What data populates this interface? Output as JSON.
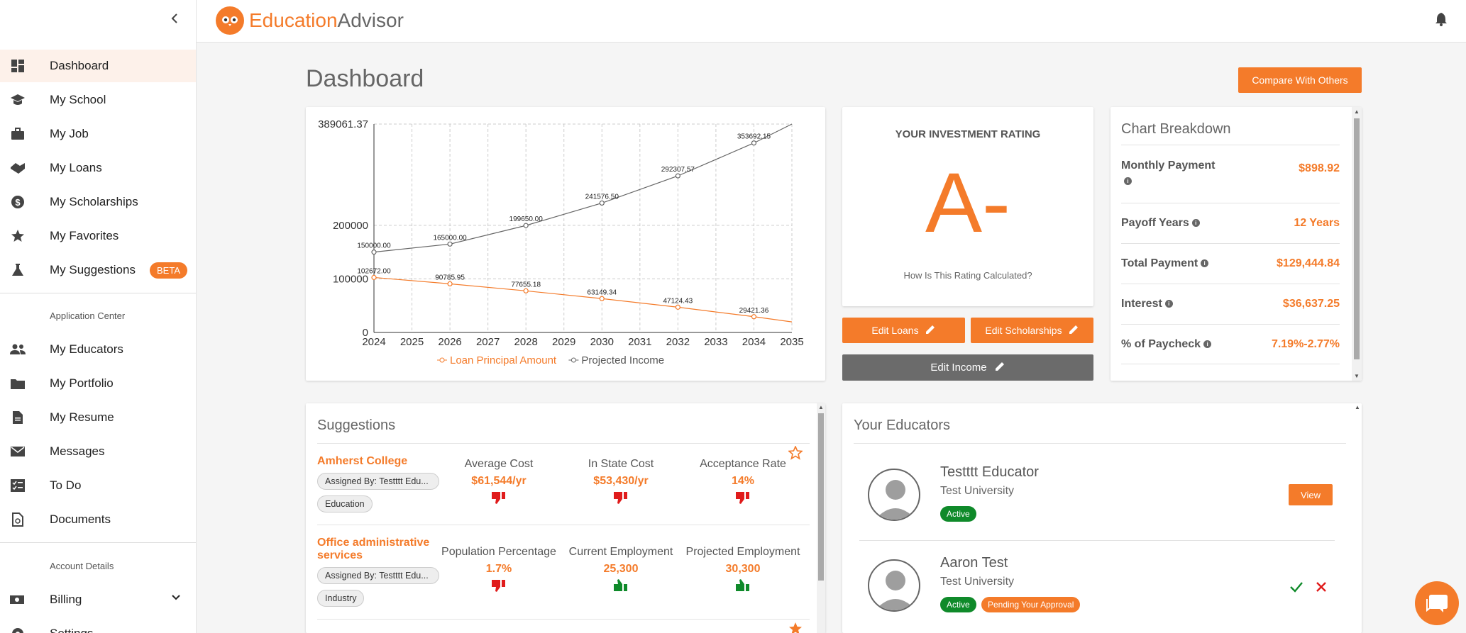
{
  "app": {
    "logo_part1": "Education",
    "logo_part2": "Advisor"
  },
  "sidebar": {
    "items": [
      {
        "label": "Dashboard",
        "icon": "dashboard-icon"
      },
      {
        "label": "My School",
        "icon": "school-icon"
      },
      {
        "label": "My Job",
        "icon": "briefcase-icon"
      },
      {
        "label": "My Loans",
        "icon": "handshake-icon"
      },
      {
        "label": "My Scholarships",
        "icon": "dollar-circle-icon"
      },
      {
        "label": "My Favorites",
        "icon": "star-icon"
      },
      {
        "label": "My Suggestions",
        "icon": "flask-icon",
        "badge": "BETA"
      }
    ],
    "application_center_title": "Application Center",
    "app_items": [
      {
        "label": "My Educators",
        "icon": "people-icon"
      },
      {
        "label": "My Portfolio",
        "icon": "folder-icon"
      },
      {
        "label": "My Resume",
        "icon": "document-icon"
      },
      {
        "label": "Messages",
        "icon": "mail-icon"
      },
      {
        "label": "To Do",
        "icon": "checklist-icon"
      },
      {
        "label": "Documents",
        "icon": "file-clip-icon"
      }
    ],
    "account_details_title": "Account Details",
    "account_items": [
      {
        "label": "Billing",
        "icon": "billing-icon"
      },
      {
        "label": "Settings",
        "icon": "gear-icon"
      }
    ]
  },
  "page": {
    "title": "Dashboard",
    "compare_label": "Compare With Others"
  },
  "chart_data": {
    "type": "line",
    "x": [
      2024,
      2025,
      2026,
      2027,
      2028,
      2029,
      2030,
      2031,
      2032,
      2033,
      2034,
      2035
    ],
    "x_ticks": [
      "2024",
      "2025",
      "2026",
      "2027",
      "2028",
      "2029",
      "2030",
      "2031",
      "2032",
      "2033",
      "2034",
      "2035"
    ],
    "y_ticks": [
      "0",
      "100000",
      "200000",
      "389061.37"
    ],
    "ylim": [
      0,
      389061.37
    ],
    "series": [
      {
        "name": "Loan Principal Amount",
        "color": "#f47b2a",
        "points": [
          [
            2024,
            102672.0
          ],
          [
            2026,
            90785.95
          ],
          [
            2028,
            77655.18
          ],
          [
            2030,
            63149.34
          ],
          [
            2032,
            47124.43
          ],
          [
            2034,
            29421.36
          ],
          [
            2035,
            19700
          ]
        ],
        "labels": [
          "102672.00",
          "90785.95",
          "77655.18",
          "63149.34",
          "47124.43",
          "29421.36",
          ""
        ]
      },
      {
        "name": "Projected Income",
        "color": "#666666",
        "points": [
          [
            2024,
            150000.0
          ],
          [
            2026,
            165000.0
          ],
          [
            2028,
            199650.0
          ],
          [
            2030,
            241576.5
          ],
          [
            2032,
            292307.57
          ],
          [
            2034,
            353692.15
          ],
          [
            2035,
            389061.37
          ]
        ],
        "labels": [
          "150000.00",
          "165000.00",
          "199650.00",
          "241576.50",
          "292307.57",
          "353692.15",
          ""
        ]
      }
    ],
    "grid": true,
    "legend_position": "bottom"
  },
  "rating": {
    "title": "YOUR INVESTMENT RATING",
    "grade": "A-",
    "link": "How Is This Rating Calculated?"
  },
  "buttons": {
    "edit_loans": "Edit Loans",
    "edit_scholarships": "Edit Scholarships",
    "edit_income": "Edit Income"
  },
  "breakdown": {
    "title": "Chart Breakdown",
    "rows": [
      {
        "label": "Monthly Payment",
        "value": "$898.92"
      },
      {
        "label": "Payoff Years",
        "value": "12 Years"
      },
      {
        "label": "Total Payment",
        "value": "$129,444.84"
      },
      {
        "label": "Interest",
        "value": "$36,637.25"
      },
      {
        "label": "% of Paycheck",
        "value": "7.19%-2.77%"
      }
    ]
  },
  "suggestions": {
    "title": "Suggestions",
    "items": [
      {
        "name": "Amherst College",
        "assigned": "Assigned By: Testttt Edu...",
        "category": "Education",
        "starred": false,
        "metrics": [
          {
            "label": "Average Cost",
            "value": "$61,544/yr",
            "thumb": "down"
          },
          {
            "label": "In State Cost",
            "value": "$53,430/yr",
            "thumb": "down"
          },
          {
            "label": "Acceptance Rate",
            "value": "14%",
            "thumb": "down"
          }
        ]
      },
      {
        "name": "Office administrative services",
        "assigned": "Assigned By: Testttt Edu...",
        "category": "Industry",
        "starred": true,
        "metrics": [
          {
            "label": "Population Percentage",
            "value": "1.7%",
            "thumb": "down"
          },
          {
            "label": "Current Employment",
            "value": "25,300",
            "thumb": "up"
          },
          {
            "label": "Projected Employment",
            "value": "30,300",
            "thumb": "up"
          }
        ]
      }
    ]
  },
  "educators": {
    "title": "Your Educators",
    "items": [
      {
        "name": "Testttt Educator",
        "school": "Test University",
        "status": "Active",
        "action": "View"
      },
      {
        "name": "Aaron Test",
        "school": "Test University",
        "status": "Active",
        "pending": "Pending Your Approval"
      }
    ]
  },
  "colors": {
    "accent": "#f47b2a",
    "success": "#0f8a2a",
    "danger": "#e01b1b"
  }
}
